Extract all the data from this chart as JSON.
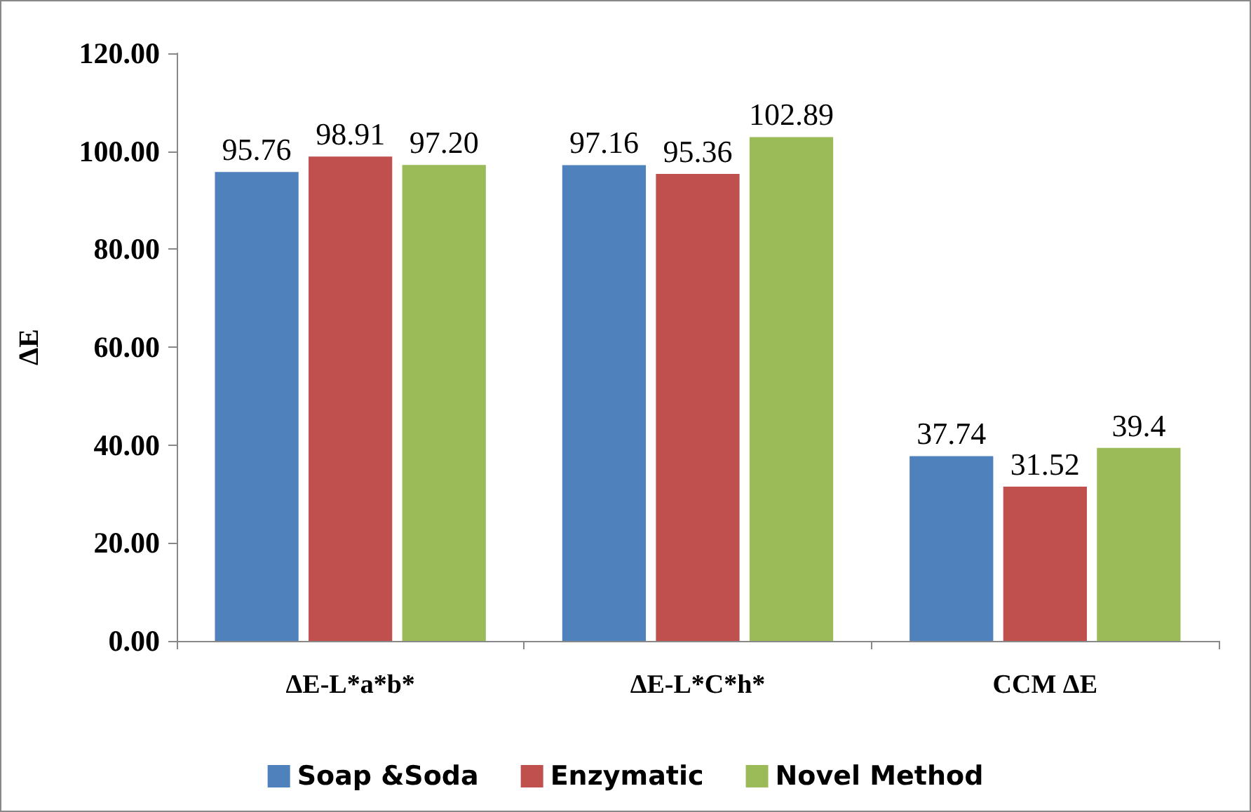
{
  "chart_data": {
    "type": "bar",
    "ylabel": "ΔE",
    "categories": [
      "ΔE-L*a*b*",
      "ΔE-L*C*h*",
      "CCM ΔE"
    ],
    "series": [
      {
        "name": "Soap &Soda",
        "color": "#4f81bd",
        "values": [
          95.76,
          97.16,
          37.74
        ],
        "value_labels": [
          "95.76",
          "97.16",
          "37.74"
        ]
      },
      {
        "name": "Enzymatic",
        "color": "#c0504d",
        "values": [
          98.91,
          95.36,
          31.52
        ],
        "value_labels": [
          "98.91",
          "95.36",
          "31.52"
        ]
      },
      {
        "name": "Novel Method",
        "color": "#9bbb59",
        "values": [
          97.2,
          102.89,
          39.4
        ],
        "value_labels": [
          "97.20",
          "102.89",
          "39.4"
        ]
      }
    ],
    "ylim": [
      0,
      120
    ],
    "yticks": [
      {
        "value": 0,
        "label": "0.00"
      },
      {
        "value": 20,
        "label": "20.00"
      },
      {
        "value": 40,
        "label": "40.00"
      },
      {
        "value": 60,
        "label": "60.00"
      },
      {
        "value": 80,
        "label": "80.00"
      },
      {
        "value": 100,
        "label": "100.00"
      },
      {
        "value": 120,
        "label": "120.00"
      }
    ],
    "grid": false,
    "legend": "bottom"
  }
}
